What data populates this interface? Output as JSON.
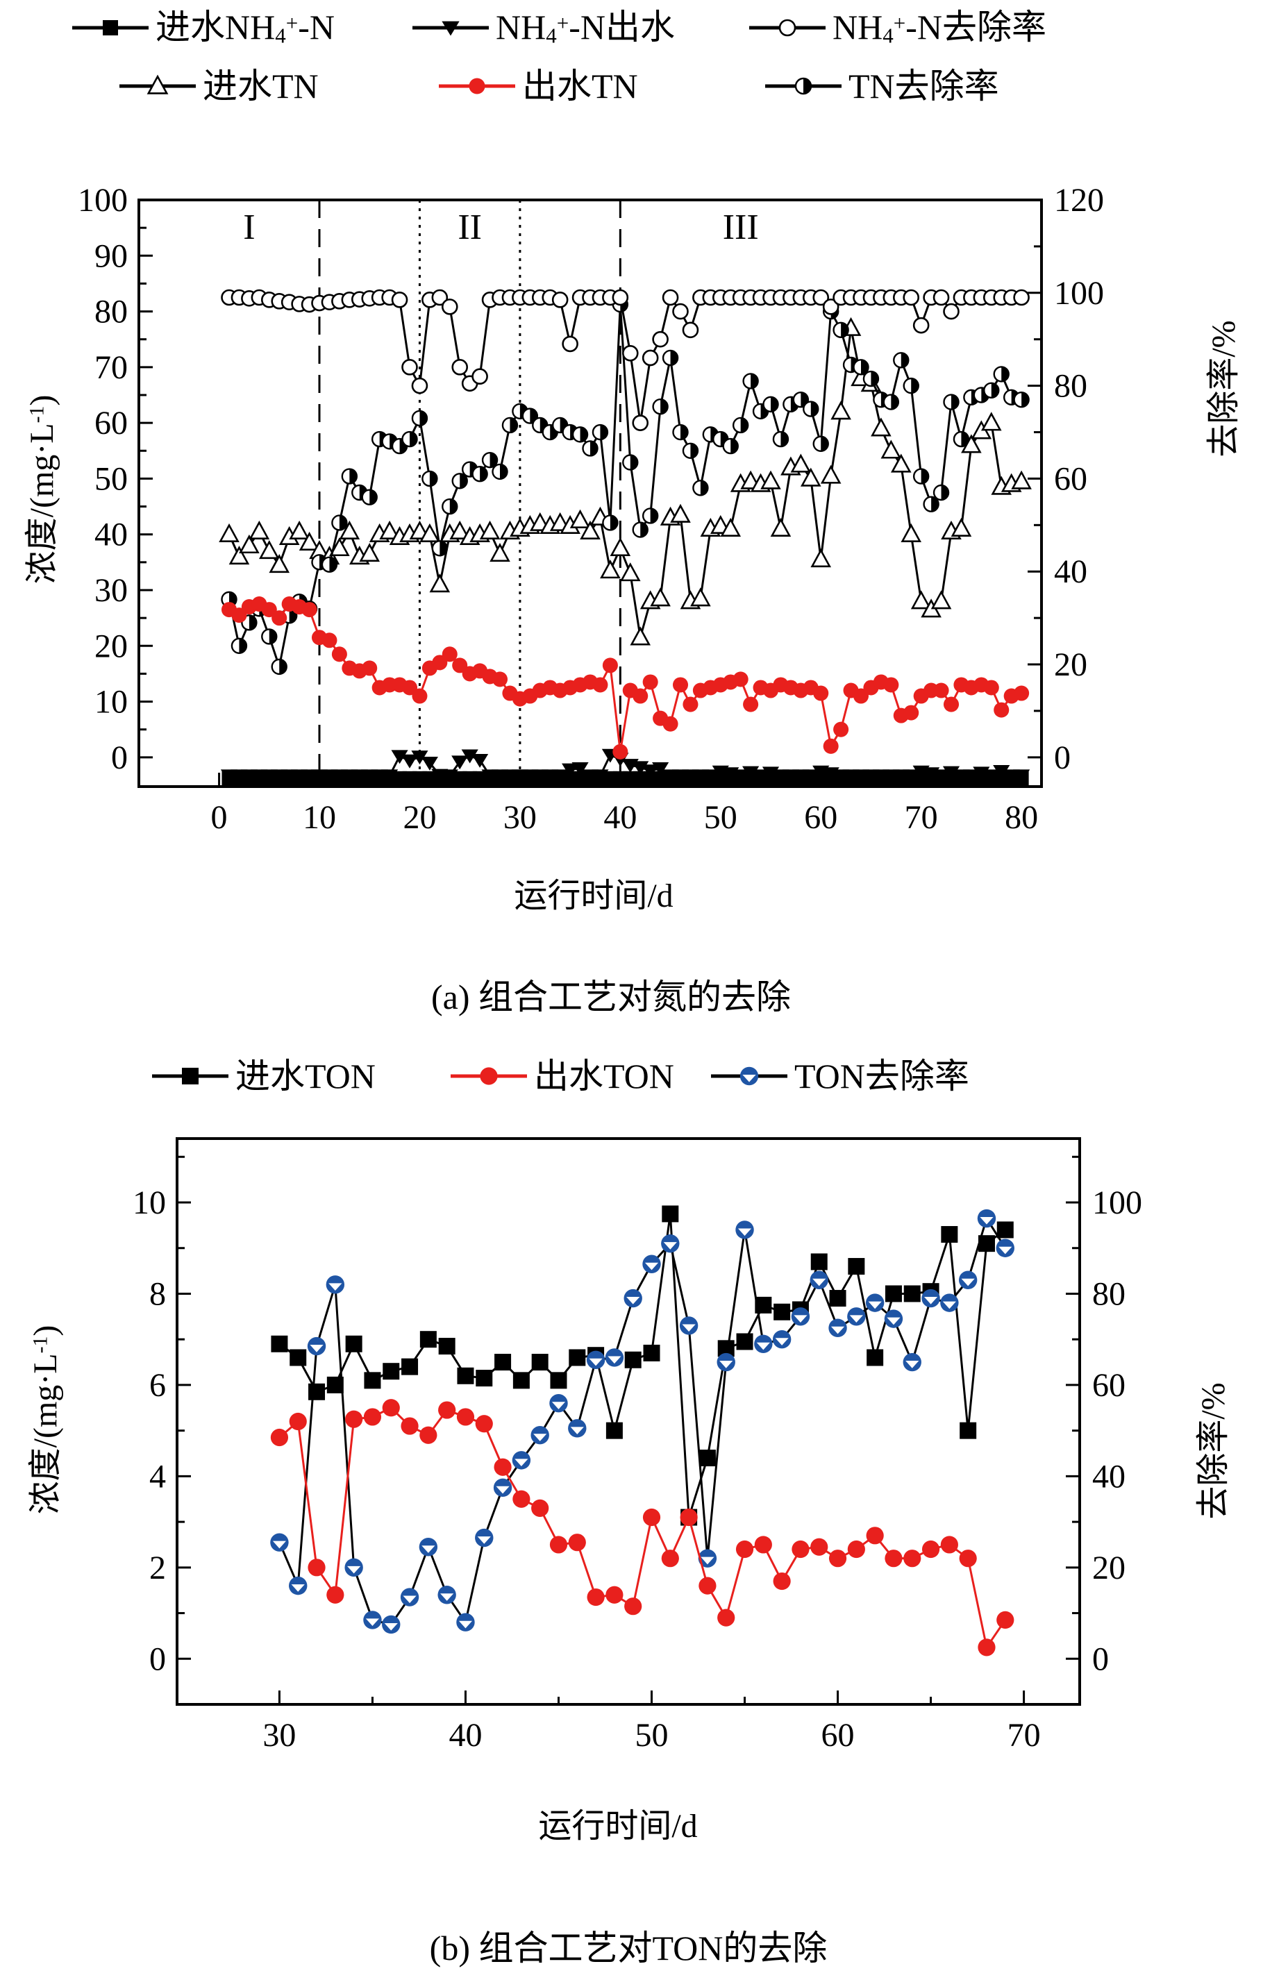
{
  "figure": {
    "background": "#ffffff",
    "colors": {
      "black": "#000000",
      "red": "#e8201d",
      "blue": "#1f55a5"
    }
  },
  "chart_data": [
    {
      "type": "line",
      "title": "(a) 组合工艺对氮的去除",
      "xlabel": "运行时间/d",
      "ylabel_left": "浓度/(mg·L^-1^)",
      "ylabel_right": "去除率/%",
      "xlim": [
        -8,
        82
      ],
      "xticks": [
        0,
        10,
        20,
        30,
        40,
        50,
        60,
        70,
        80
      ],
      "xminors": [
        5,
        15,
        25,
        35,
        45,
        55,
        65,
        75
      ],
      "ylim_left": [
        -5.25,
        100
      ],
      "yticks_left": [
        0,
        10,
        20,
        30,
        40,
        50,
        60,
        70,
        80,
        90,
        100
      ],
      "yminors_left": [
        5,
        15,
        25,
        35,
        45,
        55,
        65,
        75,
        85,
        95
      ],
      "ylim_right": [
        -6.3,
        120
      ],
      "yticks_right": [
        0,
        20,
        40,
        60,
        80,
        100,
        120
      ],
      "yminors_right": [
        10,
        30,
        50,
        70,
        90,
        110
      ],
      "grid": false,
      "legend_position": "top",
      "phase_lines": [
        {
          "x": 10,
          "style": "dashed"
        },
        {
          "x": 20,
          "style": "dotted"
        },
        {
          "x": 30,
          "style": "dotted"
        },
        {
          "x": 40,
          "style": "dashed"
        }
      ],
      "phase_labels": [
        {
          "text": "I",
          "x": 3,
          "y": 93
        },
        {
          "text": "II",
          "x": 25,
          "y": 93
        },
        {
          "text": "III",
          "x": 52,
          "y": 93
        }
      ],
      "x": [
        1,
        2,
        3,
        4,
        5,
        6,
        7,
        8,
        9,
        10,
        11,
        12,
        13,
        14,
        15,
        16,
        17,
        18,
        19,
        20,
        21,
        22,
        23,
        24,
        25,
        26,
        27,
        28,
        29,
        30,
        31,
        32,
        33,
        34,
        35,
        36,
        37,
        38,
        39,
        40,
        41,
        42,
        43,
        44,
        45,
        46,
        47,
        48,
        49,
        50,
        51,
        52,
        53,
        54,
        55,
        56,
        57,
        58,
        59,
        60,
        61,
        62,
        63,
        64,
        65,
        66,
        67,
        68,
        69,
        70,
        71,
        72,
        73,
        74,
        75,
        76,
        77,
        78,
        79,
        80
      ],
      "series": [
        {
          "id": "inf_nh4",
          "name": "进水NH4+-N",
          "label_rich": "进水NH~4~^+^-N",
          "marker": "square-filled",
          "color": "#000000",
          "line_color": "#000000",
          "axis": "left",
          "values": [
            -3.8,
            -3.8,
            -3.8,
            -3.8,
            -3.8,
            -3.8,
            -3.8,
            -3.8,
            -3.8,
            -3.8,
            -3.8,
            -3.8,
            -3.8,
            -3.8,
            -3.8,
            -3.8,
            -3.8,
            -3.8,
            -3.8,
            -3.8,
            -3.8,
            -3.8,
            -3.8,
            -3.8,
            -3.8,
            -3.8,
            -3.8,
            -3.8,
            -3.8,
            -3.8,
            -3.8,
            -3.8,
            -3.8,
            -3.8,
            -3.8,
            -3.8,
            -3.8,
            -3.8,
            -3.8,
            -3.8,
            -3.8,
            -3.8,
            -3.8,
            -3.8,
            -3.8,
            -3.8,
            -3.8,
            -3.8,
            -3.8,
            -3.8,
            -3.8,
            -3.8,
            -3.8,
            -3.8,
            -3.8,
            -3.8,
            -3.8,
            -3.8,
            -3.8,
            -3.8,
            -3.8,
            -3.8,
            -3.8,
            -3.8,
            -3.8,
            -3.8,
            -3.8,
            -3.8,
            -3.8,
            -3.8,
            -3.8,
            -3.8,
            -3.8,
            -3.8,
            -3.8,
            -3.8,
            -3.8,
            -3.8,
            -3.8,
            -3.8
          ]
        },
        {
          "id": "eff_nh4",
          "name": "NH4+-N出水",
          "label_rich": "NH~4~^+^-N出水",
          "marker": "triangle-down-filled",
          "color": "#000000",
          "line_color": "#000000",
          "axis": "left",
          "values": [
            -3.3,
            -3.3,
            -3.3,
            -3.3,
            -3.3,
            -3.3,
            -3.3,
            -3.3,
            -3.3,
            -3.3,
            -3.3,
            -3.3,
            -3.3,
            -3.3,
            -3.3,
            -3.3,
            -3.3,
            0.2,
            -0.6,
            0.1,
            -1.0,
            -3.2,
            -3.3,
            -0.8,
            0.3,
            -0.5,
            -3.3,
            -3.3,
            -3.3,
            -3.3,
            -3.3,
            -3.3,
            -3.3,
            -3.3,
            -2.2,
            -2.0,
            -3.3,
            -3.3,
            0.4,
            -0.3,
            -1.4,
            -1.8,
            -2.4,
            -2.0,
            -3.3,
            -3.3,
            -3.3,
            -3.3,
            -3.3,
            -2.6,
            -2.9,
            -3.3,
            -2.7,
            -3.3,
            -2.8,
            -3.3,
            -3.3,
            -3.3,
            -3.3,
            -2.6,
            -2.9,
            -3.3,
            -3.3,
            -3.3,
            -3.3,
            -3.3,
            -3.3,
            -3.3,
            -3.3,
            -2.6,
            -2.9,
            -3.3,
            -2.7,
            -3.3,
            -3.3,
            -2.8,
            -3.3,
            -2.5,
            -3.3,
            -3.3
          ]
        },
        {
          "id": "removal_nh4",
          "name": "NH4+-N去除率",
          "label_rich": "NH~4~^+^-N去除率",
          "marker": "circle-open",
          "color": "#000000",
          "line_color": "#000000",
          "axis": "right",
          "values": [
            99,
            99,
            98.8,
            99,
            98.5,
            98.2,
            98,
            97.6,
            97.5,
            97.8,
            98,
            98.2,
            98.5,
            98.6,
            98.8,
            99,
            99,
            98.5,
            84,
            80,
            98.5,
            99,
            97,
            84,
            80.5,
            82,
            98.5,
            99,
            99,
            99,
            99,
            99,
            99,
            98.5,
            89,
            99,
            99,
            99,
            99,
            99,
            87,
            72,
            86,
            90,
            99,
            96,
            92,
            99,
            99,
            99,
            99,
            99,
            99,
            99,
            99,
            99,
            99,
            99,
            99,
            99,
            97,
            99,
            99,
            99,
            99,
            99,
            99,
            99,
            99,
            93,
            99,
            99,
            96,
            99,
            99,
            99,
            99,
            99,
            99,
            99
          ]
        },
        {
          "id": "inf_tn",
          "name": "进水TN",
          "label_rich": "进水TN",
          "marker": "triangle-up-open",
          "color": "#000000",
          "line_color": "#000000",
          "axis": "left",
          "values": [
            40,
            36,
            38,
            40.5,
            37,
            34.5,
            39.5,
            40.5,
            38.5,
            37,
            36,
            37.5,
            40.5,
            36,
            36.5,
            40,
            40.5,
            39.5,
            40,
            40.5,
            40,
            31,
            40,
            40.5,
            39.5,
            40,
            40.5,
            36.5,
            40.5,
            41,
            41.5,
            42,
            41.5,
            42,
            41.5,
            42.5,
            40.5,
            43,
            33.5,
            37.5,
            33,
            21.5,
            28,
            28.5,
            43,
            43.5,
            28,
            28.5,
            41,
            41.5,
            41,
            49,
            49.5,
            49,
            49.5,
            41,
            52,
            52.5,
            50,
            35.5,
            50.5,
            62,
            77,
            68,
            67,
            59,
            55,
            52.5,
            40,
            28,
            26.5,
            28,
            40.5,
            41,
            56,
            58.5,
            60,
            48.5,
            49,
            49.5
          ]
        },
        {
          "id": "eff_tn",
          "name": "出水TN",
          "label_rich": "出水TN",
          "marker": "circle-filled",
          "color": "#e8201d",
          "line_color": "#e8201d",
          "axis": "left",
          "values": [
            26.5,
            25.5,
            27,
            27.5,
            26.5,
            25,
            27.5,
            27,
            26.5,
            21.5,
            21,
            18.5,
            16,
            15.5,
            16,
            12.5,
            13,
            13,
            12.5,
            11,
            16,
            17,
            18.5,
            16.5,
            15,
            15.5,
            14.5,
            14,
            11.5,
            10.5,
            11,
            12,
            12.5,
            12,
            12.5,
            13,
            13.5,
            13,
            16.5,
            1,
            12,
            11,
            13.5,
            7,
            6,
            13,
            9.5,
            12,
            12.5,
            13,
            13.5,
            14,
            9.5,
            12.5,
            12,
            13,
            12.5,
            12,
            12.5,
            11.5,
            2,
            5,
            12,
            11,
            12.5,
            13.5,
            13,
            7.5,
            8,
            11,
            12,
            12,
            9.5,
            13,
            12.5,
            13,
            12.5,
            8.5,
            11,
            11.5
          ]
        },
        {
          "id": "removal_tn",
          "name": "TN去除率",
          "label_rich": "TN去除率",
          "marker": "circle-half-right",
          "color": "#000000",
          "line_color": "#000000",
          "axis": "right",
          "values": [
            34,
            24,
            29,
            32,
            26,
            19.5,
            30.5,
            33.5,
            32,
            42,
            41.5,
            50.5,
            60.5,
            57,
            56,
            68.5,
            68,
            67,
            68.5,
            73,
            60,
            45,
            54,
            59.5,
            62,
            61,
            64,
            61.5,
            71.5,
            74.5,
            73.5,
            71.5,
            70,
            71.5,
            70,
            69.5,
            66.5,
            70,
            50.5,
            97.5,
            63.5,
            49,
            52,
            75.5,
            86,
            70,
            66,
            58,
            69.5,
            68.5,
            67,
            71.5,
            81,
            74.5,
            76,
            68.5,
            76,
            77,
            75,
            67.5,
            96,
            92,
            84.5,
            84,
            81.5,
            77,
            76.5,
            85.5,
            80,
            60.5,
            54.5,
            57,
            76.5,
            68.5,
            77.5,
            78,
            79,
            82.5,
            77.5,
            77
          ]
        }
      ]
    },
    {
      "type": "line",
      "title": "(b) 组合工艺对TON的去除",
      "xlabel": "运行时间/d",
      "ylabel_left": "浓度/(mg·L^-1^)",
      "ylabel_right": "去除率/%",
      "xlim": [
        24.5,
        73
      ],
      "xticks": [
        30,
        40,
        50,
        60,
        70
      ],
      "xminors": [
        35,
        45,
        55,
        65
      ],
      "ylim_left": [
        -1.0,
        11.4
      ],
      "yticks_left": [
        0,
        2,
        4,
        6,
        8,
        10
      ],
      "yminors_left": [
        1,
        3,
        5,
        7,
        9,
        11
      ],
      "ylim_right": [
        -10,
        114
      ],
      "yticks_right": [
        0,
        20,
        40,
        60,
        80,
        100
      ],
      "yminors_right": [
        10,
        30,
        50,
        70,
        90,
        110
      ],
      "grid": false,
      "legend_position": "top",
      "phase_lines": [],
      "phase_labels": [],
      "x": [
        30,
        31,
        32,
        33,
        34,
        35,
        36,
        37,
        38,
        39,
        40,
        41,
        42,
        43,
        44,
        45,
        46,
        47,
        48,
        49,
        50,
        51,
        52,
        53,
        54,
        55,
        56,
        57,
        58,
        59,
        60,
        61,
        62,
        63,
        64,
        65,
        66,
        67,
        68,
        69
      ],
      "series": [
        {
          "id": "inf_ton",
          "name": "进水TON",
          "label_rich": "进水TON",
          "marker": "square-filled",
          "color": "#000000",
          "line_color": "#000000",
          "axis": "left",
          "values": [
            6.9,
            6.6,
            5.85,
            6.0,
            6.9,
            6.1,
            6.3,
            6.4,
            7.0,
            6.85,
            6.2,
            6.15,
            6.5,
            6.1,
            6.5,
            6.1,
            6.6,
            6.65,
            5.0,
            6.55,
            6.7,
            9.75,
            3.1,
            4.4,
            6.8,
            6.95,
            7.75,
            7.6,
            7.65,
            8.7,
            7.9,
            8.6,
            6.6,
            8.0,
            8.0,
            8.05,
            9.3,
            5.0,
            9.1,
            9.4
          ]
        },
        {
          "id": "eff_ton",
          "name": "出水TON",
          "label_rich": "出水TON",
          "marker": "circle-filled",
          "color": "#e8201d",
          "line_color": "#e8201d",
          "axis": "left",
          "values": [
            4.85,
            5.2,
            2.0,
            1.4,
            5.25,
            5.3,
            5.5,
            5.1,
            4.9,
            5.45,
            5.3,
            5.15,
            4.2,
            3.5,
            3.3,
            2.5,
            2.55,
            1.35,
            1.4,
            1.15,
            3.1,
            2.2,
            3.1,
            1.6,
            0.9,
            2.4,
            2.5,
            1.7,
            2.4,
            2.45,
            2.2,
            2.4,
            2.7,
            2.2,
            2.2,
            2.4,
            2.5,
            2.2,
            0.25,
            0.85
          ]
        },
        {
          "id": "removal_ton",
          "name": "TON去除率",
          "label_rich": "TON去除率",
          "marker": "circle-notch-down",
          "color": "#1f55a5",
          "line_color": "#000000",
          "axis": "right",
          "values": [
            25.5,
            16,
            68.5,
            82,
            20,
            8.5,
            7.5,
            13.5,
            24.5,
            14,
            8,
            26.5,
            37.5,
            43.5,
            49,
            56,
            50.5,
            65.5,
            66,
            79,
            86.5,
            91,
            73,
            22,
            65,
            94,
            69,
            70,
            75,
            83,
            72.5,
            75,
            78,
            74.5,
            65,
            79,
            78,
            83,
            96.5,
            90
          ]
        }
      ]
    }
  ]
}
